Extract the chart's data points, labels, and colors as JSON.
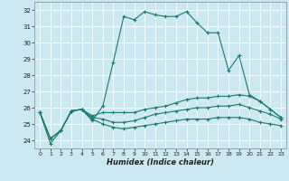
{
  "xlabel": "Humidex (Indice chaleur)",
  "bg_color": "#cce8f0",
  "grid_color": "#ffffff",
  "line_color": "#1a7a6e",
  "xlim": [
    -0.5,
    23.5
  ],
  "ylim": [
    23.5,
    32.5
  ],
  "yticks": [
    24,
    25,
    26,
    27,
    28,
    29,
    30,
    31,
    32
  ],
  "xticks": [
    0,
    1,
    2,
    3,
    4,
    5,
    6,
    7,
    8,
    9,
    10,
    11,
    12,
    13,
    14,
    15,
    16,
    17,
    18,
    19,
    20,
    21,
    22,
    23
  ],
  "series": [
    {
      "x": [
        0,
        1,
        2,
        3,
        4,
        5,
        6,
        7,
        8,
        9,
        10,
        11,
        12,
        13,
        14,
        15,
        16,
        17,
        18,
        19,
        20,
        21,
        22,
        23
      ],
      "y": [
        25.7,
        23.8,
        24.6,
        25.8,
        25.9,
        25.2,
        26.1,
        28.8,
        31.6,
        31.4,
        31.9,
        31.7,
        31.6,
        31.6,
        31.9,
        31.2,
        30.6,
        30.6,
        28.3,
        29.2,
        26.8,
        26.4,
        25.9,
        25.4
      ]
    },
    {
      "x": [
        0,
        1,
        2,
        3,
        4,
        5,
        6,
        7,
        8,
        9,
        10,
        11,
        12,
        13,
        14,
        15,
        16,
        17,
        18,
        19,
        20,
        21,
        22,
        23
      ],
      "y": [
        25.7,
        24.1,
        24.6,
        25.8,
        25.9,
        25.5,
        25.7,
        25.7,
        25.7,
        25.7,
        25.9,
        26.0,
        26.1,
        26.3,
        26.5,
        26.6,
        26.6,
        26.7,
        26.7,
        26.8,
        26.7,
        26.4,
        25.9,
        25.4
      ]
    },
    {
      "x": [
        0,
        1,
        2,
        3,
        4,
        5,
        6,
        7,
        8,
        9,
        10,
        11,
        12,
        13,
        14,
        15,
        16,
        17,
        18,
        19,
        20,
        21,
        22,
        23
      ],
      "y": [
        25.7,
        24.1,
        24.6,
        25.8,
        25.9,
        25.4,
        25.3,
        25.1,
        25.1,
        25.2,
        25.4,
        25.6,
        25.7,
        25.8,
        25.9,
        26.0,
        26.0,
        26.1,
        26.1,
        26.2,
        26.0,
        25.8,
        25.6,
        25.3
      ]
    },
    {
      "x": [
        0,
        1,
        2,
        3,
        4,
        5,
        6,
        7,
        8,
        9,
        10,
        11,
        12,
        13,
        14,
        15,
        16,
        17,
        18,
        19,
        20,
        21,
        22,
        23
      ],
      "y": [
        25.7,
        24.1,
        24.6,
        25.8,
        25.9,
        25.3,
        25.0,
        24.8,
        24.7,
        24.8,
        24.9,
        25.0,
        25.1,
        25.2,
        25.3,
        25.3,
        25.3,
        25.4,
        25.4,
        25.4,
        25.3,
        25.1,
        25.0,
        24.9
      ]
    }
  ]
}
